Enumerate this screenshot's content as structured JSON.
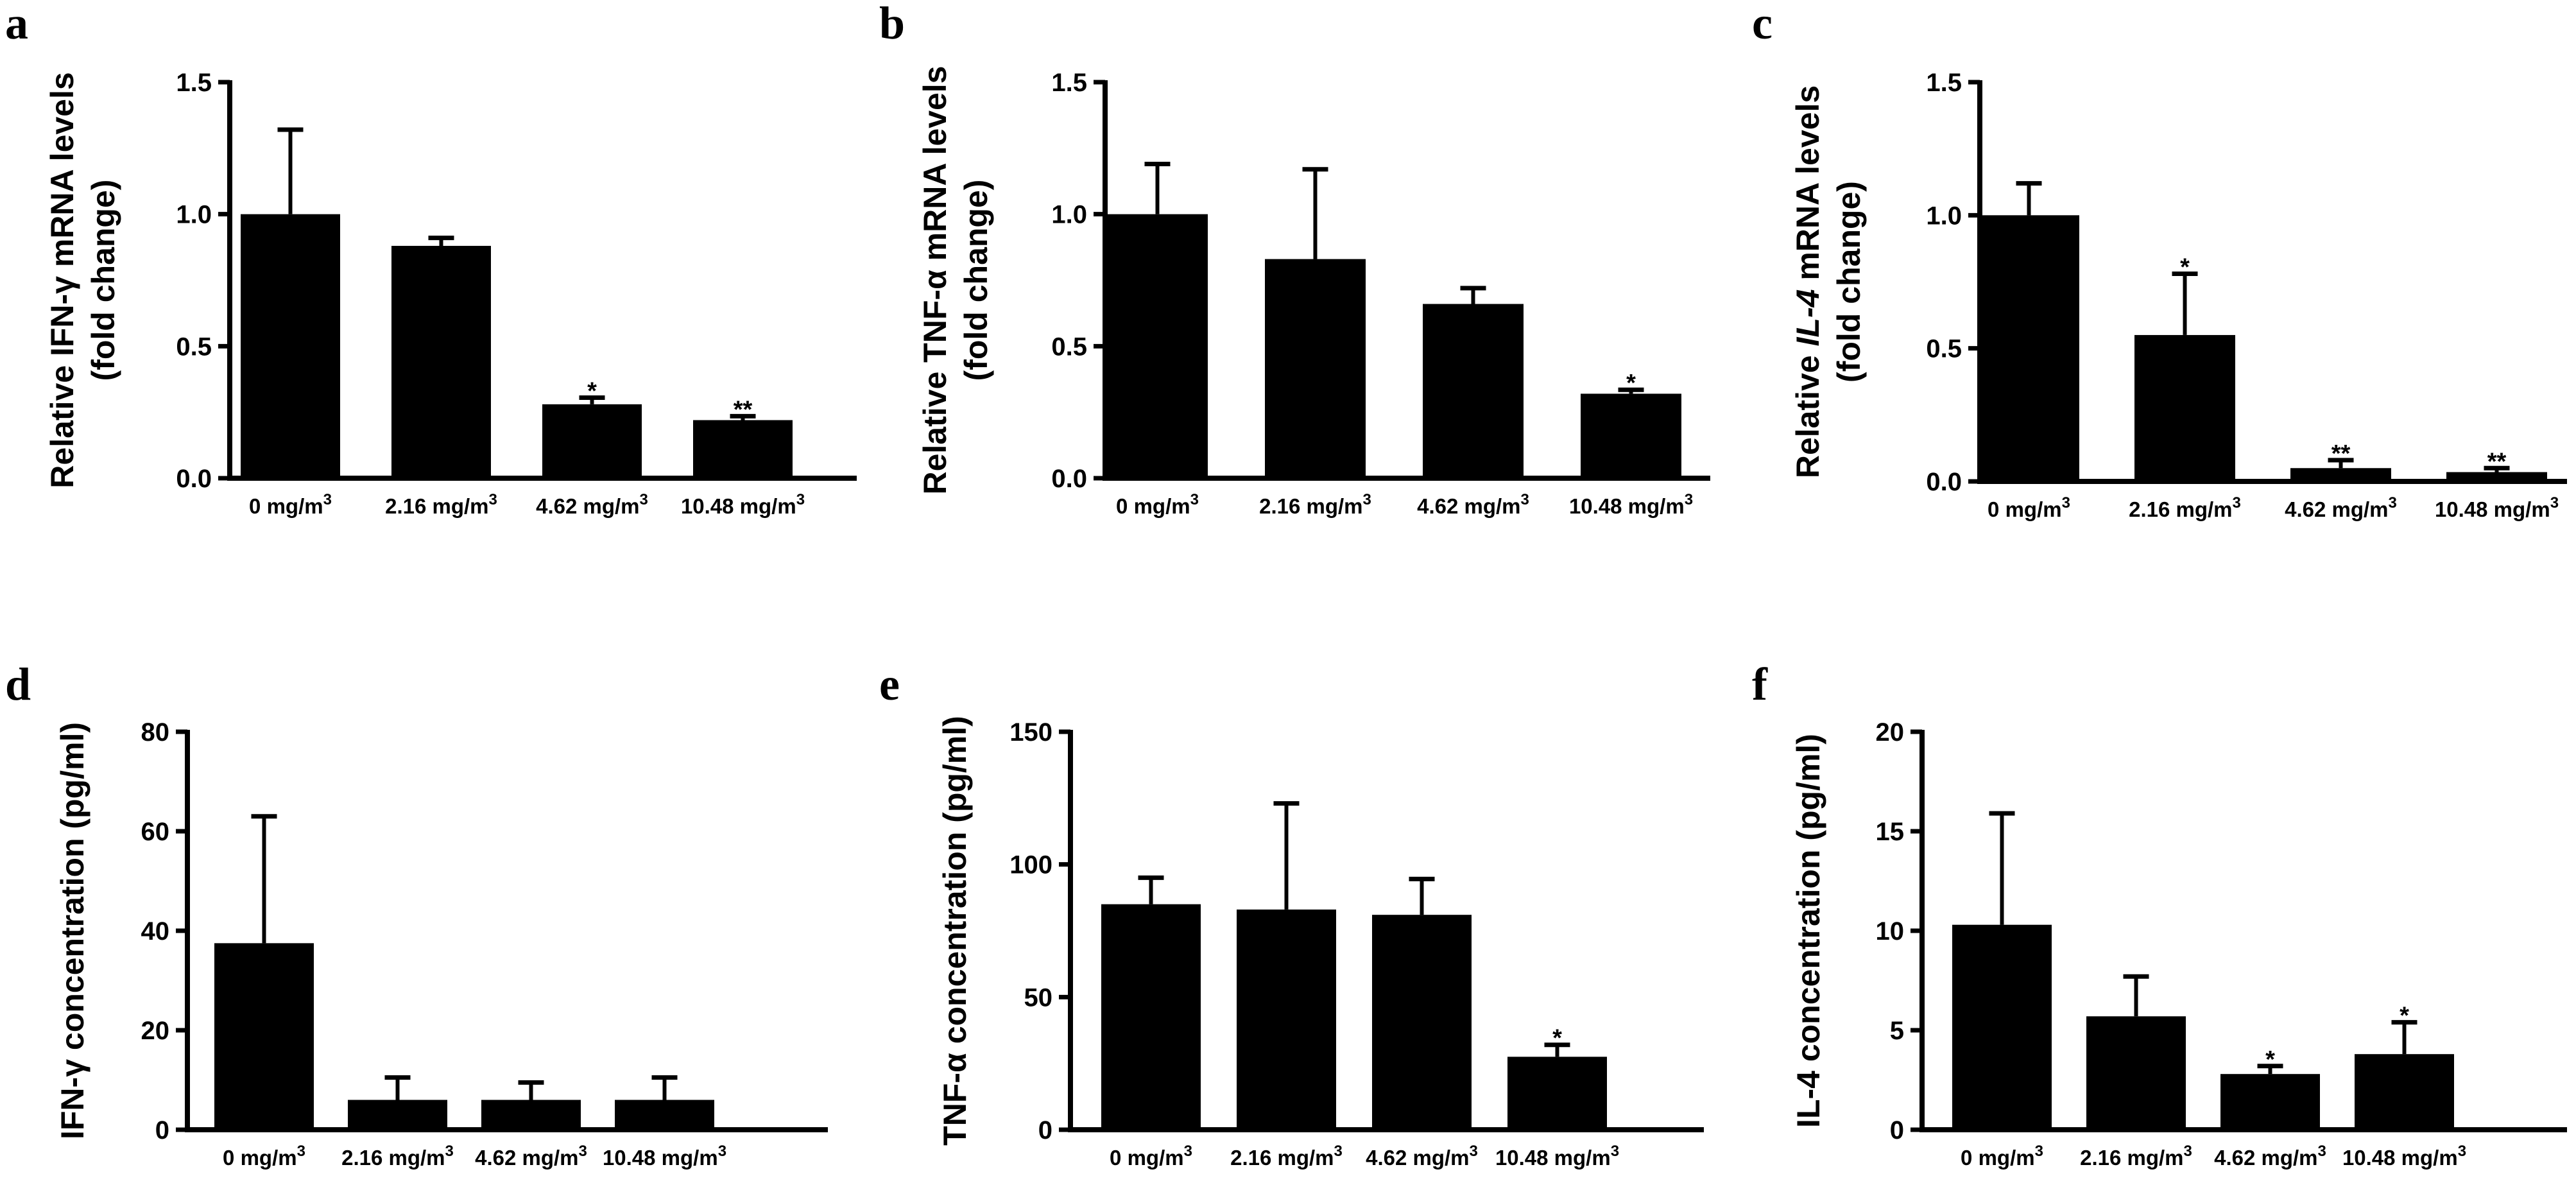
{
  "chart_data": [
    {
      "panel": "a",
      "type": "bar",
      "ylabel_parts": [
        {
          "text": "Relative IFN-",
          "italic": false
        },
        {
          "text": "γ",
          "italic": false
        },
        {
          "text": " mRNA levels",
          "italic": false
        }
      ],
      "ylabel_line2": "(fold change)",
      "categories": [
        {
          "base": "0 mg/m",
          "sup": "3"
        },
        {
          "base": "2.16 mg/m",
          "sup": "3"
        },
        {
          "base": "4.62 mg/m",
          "sup": "3"
        },
        {
          "base": "10.48 mg/m",
          "sup": "3"
        }
      ],
      "values": [
        1.0,
        0.88,
        0.28,
        0.22
      ],
      "errors": [
        0.32,
        0.03,
        0.025,
        0.015
      ],
      "significance": [
        "",
        "",
        "*",
        "**"
      ],
      "ylim": [
        0,
        1.5
      ],
      "yticks": [
        "0.0",
        "0.5",
        "1.0",
        "1.5"
      ]
    },
    {
      "panel": "b",
      "type": "bar",
      "ylabel_parts": [
        {
          "text": "Relative TNF-",
          "italic": false
        },
        {
          "text": "α",
          "italic": false
        },
        {
          "text": " mRNA levels",
          "italic": false
        }
      ],
      "ylabel_line2": "(fold change)",
      "categories": [
        {
          "base": "0 mg/m",
          "sup": "3"
        },
        {
          "base": "2.16 mg/m",
          "sup": "3"
        },
        {
          "base": "4.62 mg/m",
          "sup": "3"
        },
        {
          "base": "10.48 mg/m",
          "sup": "3"
        }
      ],
      "values": [
        1.0,
        0.83,
        0.66,
        0.32
      ],
      "errors": [
        0.19,
        0.34,
        0.06,
        0.015
      ],
      "significance": [
        "",
        "",
        "",
        "*"
      ],
      "ylim": [
        0,
        1.5
      ],
      "yticks": [
        "0.0",
        "0.5",
        "1.0",
        "1.5"
      ]
    },
    {
      "panel": "c",
      "type": "bar",
      "ylabel_parts": [
        {
          "text": "Relative ",
          "italic": false
        },
        {
          "text": "IL-4",
          "italic": true
        },
        {
          "text": " mRNA levels",
          "italic": false
        }
      ],
      "ylabel_line2": "(fold change)",
      "categories": [
        {
          "base": "0 mg/m",
          "sup": "3"
        },
        {
          "base": "2.16 mg/m",
          "sup": "3"
        },
        {
          "base": "4.62 mg/m",
          "sup": "3"
        },
        {
          "base": "10.48 mg/m",
          "sup": "3"
        }
      ],
      "values": [
        1.0,
        0.55,
        0.05,
        0.035
      ],
      "errors": [
        0.12,
        0.23,
        0.03,
        0.015
      ],
      "significance": [
        "",
        "*",
        "**",
        "**"
      ],
      "ylim": [
        0,
        1.5
      ],
      "yticks": [
        "0.0",
        "0.5",
        "1.0",
        "1.5"
      ]
    },
    {
      "panel": "d",
      "type": "bar",
      "ylabel_parts": [
        {
          "text": "IFN-",
          "italic": false
        },
        {
          "text": "γ",
          "italic": false
        },
        {
          "text": " concentration (pg/ml)",
          "italic": false
        }
      ],
      "ylabel_line2": "",
      "categories": [
        {
          "base": "0 mg/m",
          "sup": "3"
        },
        {
          "base": "2.16 mg/m",
          "sup": "3"
        },
        {
          "base": "4.62 mg/m",
          "sup": "3"
        },
        {
          "base": "10.48 mg/m",
          "sup": "3"
        }
      ],
      "values": [
        37.5,
        6.0,
        6.0,
        6.0
      ],
      "errors": [
        25.5,
        4.5,
        3.5,
        4.5
      ],
      "significance": [
        "",
        "",
        "",
        ""
      ],
      "ylim": [
        0,
        80
      ],
      "yticks": [
        "0",
        "20",
        "40",
        "60",
        "80"
      ]
    },
    {
      "panel": "e",
      "type": "bar",
      "ylabel_parts": [
        {
          "text": "TNF-",
          "italic": false
        },
        {
          "text": "α",
          "italic": false
        },
        {
          "text": " concentration (pg/ml)",
          "italic": false
        }
      ],
      "ylabel_line2": "",
      "categories": [
        {
          "base": "0 mg/m",
          "sup": "3"
        },
        {
          "base": "2.16 mg/m",
          "sup": "3"
        },
        {
          "base": "4.62 mg/m",
          "sup": "3"
        },
        {
          "base": "10.48 mg/m",
          "sup": "3"
        }
      ],
      "values": [
        85,
        83,
        81,
        27.5
      ],
      "errors": [
        10,
        40,
        13.5,
        4.5
      ],
      "significance": [
        "",
        "",
        "",
        "*"
      ],
      "ylim": [
        0,
        150
      ],
      "yticks": [
        "0",
        "50",
        "100",
        "150"
      ]
    },
    {
      "panel": "f",
      "type": "bar",
      "ylabel_parts": [
        {
          "text": "IL-4 concentration (pg/ml)",
          "italic": false
        }
      ],
      "ylabel_line2": "",
      "categories": [
        {
          "base": "0 mg/m",
          "sup": "3"
        },
        {
          "base": "2.16 mg/m",
          "sup": "3"
        },
        {
          "base": "4.62 mg/m",
          "sup": "3"
        },
        {
          "base": "10.48 mg/m",
          "sup": "3"
        }
      ],
      "values": [
        10.3,
        5.7,
        2.8,
        3.8
      ],
      "errors": [
        5.6,
        2.0,
        0.4,
        1.6
      ],
      "significance": [
        "",
        "",
        "*",
        "*"
      ],
      "ylim": [
        0,
        20
      ],
      "yticks": [
        "0",
        "5",
        "10",
        "15",
        "20"
      ]
    }
  ]
}
